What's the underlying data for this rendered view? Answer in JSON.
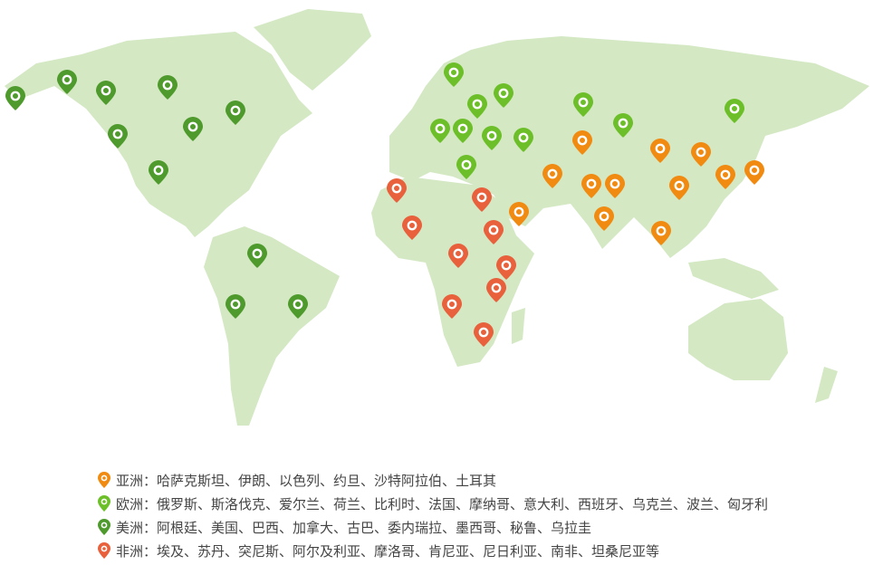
{
  "colors": {
    "land": "#d3e8c3",
    "asia": "#f18a10",
    "europe": "#6cbf28",
    "americas": "#4f9a2c",
    "africa": "#e8603c"
  },
  "pin_icon": "map-pin-icon",
  "legend": [
    {
      "key": "asia",
      "label": "亚洲：哈萨克斯坦、伊朗、以色列、约旦、沙特阿拉伯、土耳其"
    },
    {
      "key": "europe",
      "label": "欧洲：俄罗斯、斯洛伐克、爱尔兰、荷兰、比利时、法国、摩纳哥、意大利、西班牙、乌克兰、波兰、匈牙利"
    },
    {
      "key": "americas",
      "label": "美洲：阿根廷、美国、巴西、加拿大、古巴、委内瑞拉、墨西哥、秘鲁、乌拉圭"
    },
    {
      "key": "africa",
      "label": "非洲：埃及、苏丹、突尼斯、阿尔及利亚、摩洛哥、肯尼亚、尼日利亚、南非、坦桑尼亚等"
    }
  ]
}
